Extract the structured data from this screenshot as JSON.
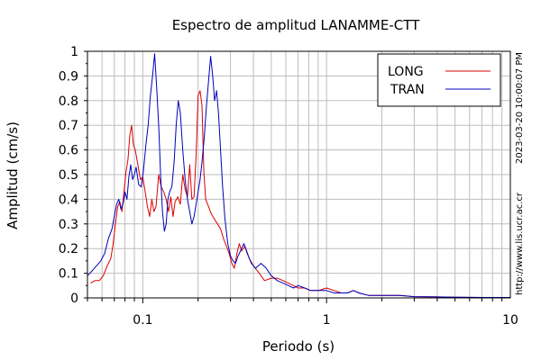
{
  "chart_data": {
    "type": "line",
    "title": "Espectro de amplitud LANAMME-CTT",
    "xlabel": "Periodo (s)",
    "ylabel": "Amplitud (cm/s)",
    "x_scale": "log",
    "xlim": [
      0.05,
      10
    ],
    "ylim": [
      0,
      1
    ],
    "x_ticks": [
      {
        "value": 0.1,
        "label": "0.1"
      },
      {
        "value": 1,
        "label": "1"
      },
      {
        "value": 10,
        "label": "10"
      }
    ],
    "y_ticks": [
      {
        "value": 0,
        "label": "0"
      },
      {
        "value": 0.1,
        "label": "0.1"
      },
      {
        "value": 0.2,
        "label": "0.2"
      },
      {
        "value": 0.3,
        "label": "0.3"
      },
      {
        "value": 0.4,
        "label": "0.4"
      },
      {
        "value": 0.5,
        "label": "0.5"
      },
      {
        "value": 0.6,
        "label": "0.6"
      },
      {
        "value": 0.7,
        "label": "0.7"
      },
      {
        "value": 0.8,
        "label": "0.8"
      },
      {
        "value": 0.9,
        "label": "0.9"
      },
      {
        "value": 1,
        "label": "1"
      }
    ],
    "grid": true,
    "legend": "top-right",
    "series": [
      {
        "name": "LONG",
        "color": "#dd0000",
        "points": [
          [
            0.052,
            0.06
          ],
          [
            0.055,
            0.07
          ],
          [
            0.058,
            0.07
          ],
          [
            0.061,
            0.09
          ],
          [
            0.064,
            0.13
          ],
          [
            0.067,
            0.16
          ],
          [
            0.069,
            0.22
          ],
          [
            0.071,
            0.3
          ],
          [
            0.073,
            0.37
          ],
          [
            0.075,
            0.39
          ],
          [
            0.077,
            0.35
          ],
          [
            0.079,
            0.43
          ],
          [
            0.081,
            0.51
          ],
          [
            0.083,
            0.56
          ],
          [
            0.085,
            0.66
          ],
          [
            0.087,
            0.7
          ],
          [
            0.089,
            0.62
          ],
          [
            0.091,
            0.6
          ],
          [
            0.094,
            0.54
          ],
          [
            0.097,
            0.48
          ],
          [
            0.1,
            0.49
          ],
          [
            0.103,
            0.43
          ],
          [
            0.106,
            0.37
          ],
          [
            0.109,
            0.33
          ],
          [
            0.112,
            0.4
          ],
          [
            0.115,
            0.35
          ],
          [
            0.118,
            0.37
          ],
          [
            0.122,
            0.5
          ],
          [
            0.126,
            0.45
          ],
          [
            0.13,
            0.43
          ],
          [
            0.134,
            0.4
          ],
          [
            0.138,
            0.35
          ],
          [
            0.142,
            0.41
          ],
          [
            0.146,
            0.33
          ],
          [
            0.15,
            0.39
          ],
          [
            0.155,
            0.41
          ],
          [
            0.16,
            0.38
          ],
          [
            0.165,
            0.5
          ],
          [
            0.17,
            0.44
          ],
          [
            0.175,
            0.41
          ],
          [
            0.18,
            0.54
          ],
          [
            0.185,
            0.4
          ],
          [
            0.19,
            0.41
          ],
          [
            0.195,
            0.58
          ],
          [
            0.2,
            0.82
          ],
          [
            0.205,
            0.84
          ],
          [
            0.21,
            0.78
          ],
          [
            0.215,
            0.51
          ],
          [
            0.22,
            0.4
          ],
          [
            0.228,
            0.37
          ],
          [
            0.236,
            0.34
          ],
          [
            0.245,
            0.32
          ],
          [
            0.255,
            0.3
          ],
          [
            0.265,
            0.28
          ],
          [
            0.275,
            0.24
          ],
          [
            0.285,
            0.21
          ],
          [
            0.295,
            0.18
          ],
          [
            0.305,
            0.14
          ],
          [
            0.315,
            0.12
          ],
          [
            0.325,
            0.18
          ],
          [
            0.335,
            0.22
          ],
          [
            0.345,
            0.19
          ],
          [
            0.36,
            0.21
          ],
          [
            0.38,
            0.16
          ],
          [
            0.4,
            0.13
          ],
          [
            0.43,
            0.1
          ],
          [
            0.46,
            0.07
          ],
          [
            0.5,
            0.08
          ],
          [
            0.54,
            0.08
          ],
          [
            0.58,
            0.07
          ],
          [
            0.62,
            0.06
          ],
          [
            0.66,
            0.05
          ],
          [
            0.7,
            0.04
          ],
          [
            0.76,
            0.04
          ],
          [
            0.82,
            0.03
          ],
          [
            0.9,
            0.03
          ],
          [
            1.0,
            0.04
          ],
          [
            1.1,
            0.03
          ],
          [
            1.2,
            0.02
          ],
          [
            1.3,
            0.02
          ],
          [
            1.4,
            0.03
          ],
          [
            1.5,
            0.02
          ],
          [
            1.7,
            0.01
          ],
          [
            2.0,
            0.01
          ],
          [
            2.5,
            0.01
          ],
          [
            3.0,
            0.005
          ],
          [
            4.0,
            0.004
          ],
          [
            5.0,
            0.003
          ],
          [
            7.0,
            0.002
          ],
          [
            10.0,
            0.002
          ]
        ]
      },
      {
        "name": "TRAN",
        "color": "#0000bb",
        "points": [
          [
            0.05,
            0.09
          ],
          [
            0.053,
            0.11
          ],
          [
            0.056,
            0.13
          ],
          [
            0.059,
            0.15
          ],
          [
            0.062,
            0.18
          ],
          [
            0.065,
            0.24
          ],
          [
            0.068,
            0.28
          ],
          [
            0.07,
            0.33
          ],
          [
            0.072,
            0.38
          ],
          [
            0.074,
            0.4
          ],
          [
            0.076,
            0.36
          ],
          [
            0.078,
            0.38
          ],
          [
            0.08,
            0.43
          ],
          [
            0.082,
            0.4
          ],
          [
            0.084,
            0.49
          ],
          [
            0.086,
            0.54
          ],
          [
            0.088,
            0.48
          ],
          [
            0.09,
            0.5
          ],
          [
            0.092,
            0.53
          ],
          [
            0.095,
            0.46
          ],
          [
            0.098,
            0.45
          ],
          [
            0.101,
            0.52
          ],
          [
            0.104,
            0.62
          ],
          [
            0.107,
            0.7
          ],
          [
            0.11,
            0.82
          ],
          [
            0.113,
            0.9
          ],
          [
            0.116,
            0.99
          ],
          [
            0.119,
            0.85
          ],
          [
            0.122,
            0.7
          ],
          [
            0.125,
            0.5
          ],
          [
            0.128,
            0.35
          ],
          [
            0.131,
            0.27
          ],
          [
            0.134,
            0.3
          ],
          [
            0.137,
            0.4
          ],
          [
            0.14,
            0.43
          ],
          [
            0.144,
            0.45
          ],
          [
            0.148,
            0.55
          ],
          [
            0.152,
            0.7
          ],
          [
            0.156,
            0.8
          ],
          [
            0.16,
            0.75
          ],
          [
            0.165,
            0.6
          ],
          [
            0.17,
            0.48
          ],
          [
            0.175,
            0.4
          ],
          [
            0.18,
            0.35
          ],
          [
            0.185,
            0.3
          ],
          [
            0.19,
            0.33
          ],
          [
            0.195,
            0.38
          ],
          [
            0.2,
            0.43
          ],
          [
            0.205,
            0.48
          ],
          [
            0.21,
            0.55
          ],
          [
            0.216,
            0.65
          ],
          [
            0.222,
            0.78
          ],
          [
            0.228,
            0.88
          ],
          [
            0.234,
            0.98
          ],
          [
            0.24,
            0.9
          ],
          [
            0.246,
            0.8
          ],
          [
            0.252,
            0.84
          ],
          [
            0.258,
            0.75
          ],
          [
            0.265,
            0.6
          ],
          [
            0.272,
            0.45
          ],
          [
            0.28,
            0.32
          ],
          [
            0.29,
            0.22
          ],
          [
            0.3,
            0.17
          ],
          [
            0.31,
            0.15
          ],
          [
            0.32,
            0.14
          ],
          [
            0.33,
            0.17
          ],
          [
            0.34,
            0.19
          ],
          [
            0.355,
            0.22
          ],
          [
            0.37,
            0.18
          ],
          [
            0.39,
            0.14
          ],
          [
            0.41,
            0.12
          ],
          [
            0.44,
            0.14
          ],
          [
            0.47,
            0.12
          ],
          [
            0.5,
            0.09
          ],
          [
            0.54,
            0.07
          ],
          [
            0.58,
            0.06
          ],
          [
            0.62,
            0.05
          ],
          [
            0.66,
            0.04
          ],
          [
            0.7,
            0.05
          ],
          [
            0.76,
            0.04
          ],
          [
            0.82,
            0.03
          ],
          [
            0.9,
            0.03
          ],
          [
            1.0,
            0.03
          ],
          [
            1.1,
            0.02
          ],
          [
            1.2,
            0.02
          ],
          [
            1.3,
            0.02
          ],
          [
            1.4,
            0.03
          ],
          [
            1.5,
            0.02
          ],
          [
            1.7,
            0.01
          ],
          [
            2.0,
            0.01
          ],
          [
            2.5,
            0.01
          ],
          [
            3.0,
            0.005
          ],
          [
            4.0,
            0.004
          ],
          [
            5.0,
            0.003
          ],
          [
            7.0,
            0.002
          ],
          [
            10.0,
            0.002
          ]
        ]
      }
    ]
  },
  "side_text": {
    "timestamp": "2023-03-20 10:00:07 PM",
    "url": "http://www.lis.ucr.ac.cr"
  }
}
